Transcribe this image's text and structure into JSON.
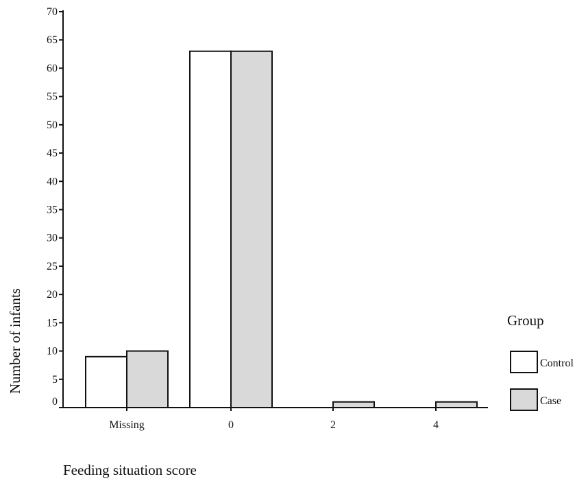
{
  "chart_data": {
    "type": "bar",
    "xlabel": "Feeding situation score",
    "ylabel": "Number of infants",
    "categories": [
      "Missing",
      "0",
      "2",
      "4"
    ],
    "series": [
      {
        "name": "Control",
        "values": [
          9,
          63,
          0,
          0
        ],
        "fill": "#ffffff"
      },
      {
        "name": "Case",
        "values": [
          10,
          63,
          1,
          1
        ],
        "fill": "#d9d9d9"
      }
    ],
    "ylim": [
      0,
      70
    ],
    "yticks": [
      0,
      5,
      10,
      15,
      20,
      25,
      30,
      35,
      40,
      45,
      50,
      55,
      60,
      65,
      70
    ],
    "grid": false,
    "legend": {
      "title": "Group",
      "placement": "right"
    }
  }
}
